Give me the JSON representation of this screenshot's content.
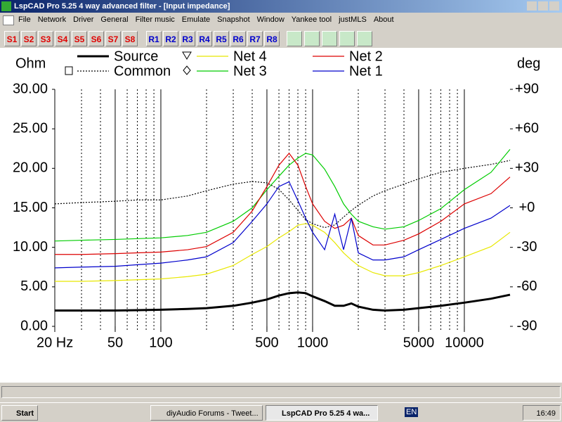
{
  "window": {
    "title": "LspCAD Pro 5.25 4 way advanced filter - [Input impedance]"
  },
  "menu": {
    "items": [
      "File",
      "Network",
      "Driver",
      "General",
      "Filter music",
      "Emulate",
      "Snapshot",
      "Window",
      "Yankee tool",
      "justMLS",
      "About"
    ]
  },
  "toolbar": {
    "sim_buttons": [
      "S1",
      "S2",
      "S3",
      "S4",
      "S5",
      "S6",
      "S7",
      "S8"
    ],
    "ref_buttons": [
      "R1",
      "R2",
      "R3",
      "R4",
      "R5",
      "R6",
      "R7",
      "R8"
    ]
  },
  "taskbar": {
    "start": "Start",
    "tasks": [
      "diyAudio Forums - Tweet...",
      "LspCAD Pro 5.25 4 wa..."
    ],
    "language": "EN",
    "clock": "16:49"
  },
  "chart_data": {
    "type": "line",
    "y_label": "Ohm",
    "y2_label": "deg",
    "x_log": true,
    "xlim": [
      20,
      20000
    ],
    "xticks": [
      {
        "value": 20,
        "label": "20 Hz"
      },
      50,
      100,
      500,
      1000,
      5000,
      10000
    ],
    "xgrid": [
      20,
      30,
      40,
      50,
      60,
      70,
      80,
      90,
      100,
      200,
      300,
      400,
      500,
      600,
      700,
      800,
      900,
      1000,
      2000,
      3000,
      4000,
      5000,
      6000,
      7000,
      8000,
      9000,
      10000
    ],
    "ylim": [
      0,
      30
    ],
    "yticks": [
      {
        "value": 30,
        "label": "30.00"
      },
      {
        "value": 25,
        "label": "25.00"
      },
      {
        "value": 20,
        "label": "20.00"
      },
      {
        "value": 15,
        "label": "15.00"
      },
      {
        "value": 10,
        "label": "10.00"
      },
      {
        "value": 5,
        "label": "5.00"
      },
      {
        "value": 0,
        "label": "0.00"
      }
    ],
    "y2lim": [
      -90,
      90
    ],
    "y2ticks": [
      {
        "value": 90,
        "label": "+90"
      },
      {
        "value": 60,
        "label": "+60"
      },
      {
        "value": 30,
        "label": "+30"
      },
      {
        "value": 0,
        "label": "+0"
      },
      -30,
      -60,
      -90
    ],
    "x": [
      20,
      30,
      50,
      70,
      100,
      150,
      200,
      300,
      400,
      500,
      600,
      700,
      800,
      900,
      1000,
      1200,
      1400,
      1600,
      1800,
      2000,
      2500,
      3000,
      4000,
      5000,
      7000,
      10000,
      15000,
      20000
    ],
    "series": [
      {
        "name": "Source",
        "color": "#000000",
        "values": [
          2.0,
          2.0,
          2.0,
          2.05,
          2.1,
          2.2,
          2.3,
          2.6,
          3.0,
          3.4,
          3.9,
          4.2,
          4.3,
          4.2,
          3.8,
          3.2,
          2.6,
          2.6,
          2.9,
          2.5,
          2.1,
          2.0,
          2.1,
          2.3,
          2.6,
          3.0,
          3.5,
          4.0
        ]
      },
      {
        "name": "Common",
        "color": "#000000",
        "axis": "y2",
        "values": [
          3,
          4,
          5,
          6,
          6,
          9,
          13,
          18,
          20,
          19,
          14,
          6,
          -2,
          -9,
          -12,
          -15,
          -13,
          -7,
          -2,
          2,
          9,
          13,
          18,
          22,
          27,
          30,
          33,
          36
        ]
      },
      {
        "name": "Net 4",
        "color": "#e8e800",
        "values": [
          5.7,
          5.7,
          5.8,
          5.9,
          6.0,
          6.3,
          6.6,
          7.7,
          9.1,
          10.1,
          11.2,
          12.0,
          12.8,
          13.0,
          12.8,
          11.9,
          10.6,
          9.3,
          8.4,
          7.7,
          6.8,
          6.4,
          6.4,
          6.8,
          7.7,
          8.8,
          10.1,
          11.9
        ]
      },
      {
        "name": "Net 3",
        "color": "#00cc00",
        "values": [
          10.8,
          10.9,
          11.0,
          11.1,
          11.2,
          11.5,
          11.9,
          13.3,
          15.0,
          17.3,
          19.0,
          20.4,
          21.3,
          21.9,
          21.7,
          19.9,
          17.7,
          15.5,
          14.2,
          13.3,
          12.6,
          12.3,
          12.6,
          13.4,
          14.9,
          17.3,
          19.5,
          22.4
        ]
      },
      {
        "name": "Net 2",
        "color": "#dd0000",
        "values": [
          9.1,
          9.1,
          9.2,
          9.3,
          9.4,
          9.7,
          10.1,
          11.9,
          14.6,
          17.7,
          20.4,
          21.9,
          20.4,
          17.7,
          15.5,
          13.3,
          12.4,
          12.8,
          13.7,
          11.5,
          10.3,
          10.3,
          10.9,
          11.7,
          13.3,
          15.5,
          16.8,
          18.9
        ]
      },
      {
        "name": "Net 1",
        "color": "#0000cc",
        "values": [
          7.4,
          7.5,
          7.6,
          7.8,
          8.0,
          8.4,
          8.8,
          10.6,
          13.3,
          15.5,
          17.7,
          18.3,
          15.9,
          13.7,
          11.9,
          9.7,
          14.2,
          9.7,
          13.7,
          9.3,
          8.4,
          8.4,
          8.8,
          9.7,
          11.0,
          12.4,
          13.7,
          15.3
        ]
      }
    ]
  }
}
